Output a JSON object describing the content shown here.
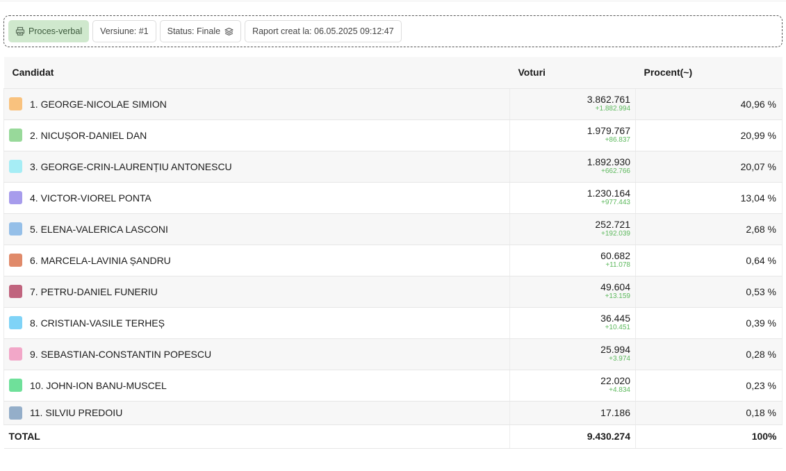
{
  "toolbar": {
    "proces_verbal": "Proces-verbal",
    "version": "Versiune: #1",
    "status": "Status: Finale",
    "report": "Raport creat la: 06.05.2025 09:12:47"
  },
  "table": {
    "headers": {
      "candidate": "Candidat",
      "votes": "Voturi",
      "percent": "Procent(~)"
    },
    "rows": [
      {
        "name": "1. GEORGE-NICOLAE SIMION",
        "votes": "3.862.761",
        "delta": "+1.882.994",
        "percent": "40,96 %",
        "color": "#f9c27e"
      },
      {
        "name": "2. NICUȘOR-DANIEL DAN",
        "votes": "1.979.767",
        "delta": "+86.837",
        "percent": "20,99 %",
        "color": "#98d99a"
      },
      {
        "name": "3. GEORGE-CRIN-LAURENȚIU ANTONESCU",
        "votes": "1.892.930",
        "delta": "+662.766",
        "percent": "20,07 %",
        "color": "#a6edf5"
      },
      {
        "name": "4. VICTOR-VIOREL PONTA",
        "votes": "1.230.164",
        "delta": "+977.443",
        "percent": "13,04 %",
        "color": "#a79cec"
      },
      {
        "name": "5. ELENA-VALERICA LASCONI",
        "votes": "252.721",
        "delta": "+192.039",
        "percent": "2,68 %",
        "color": "#95bfe8"
      },
      {
        "name": "6. MARCELA-LAVINIA ȘANDRU",
        "votes": "60.682",
        "delta": "+11.078",
        "percent": "0,64 %",
        "color": "#e08a6a"
      },
      {
        "name": "7. PETRU-DANIEL FUNERIU",
        "votes": "49.604",
        "delta": "+13.159",
        "percent": "0,53 %",
        "color": "#c0647e"
      },
      {
        "name": "8. CRISTIAN-VASILE TERHEȘ",
        "votes": "36.445",
        "delta": "+10.451",
        "percent": "0,39 %",
        "color": "#7fd3f7"
      },
      {
        "name": "9. SEBASTIAN-CONSTANTIN POPESCU",
        "votes": "25.994",
        "delta": "+3.974",
        "percent": "0,28 %",
        "color": "#f2a7c8"
      },
      {
        "name": "10. JOHN-ION BANU-MUSCEL",
        "votes": "22.020",
        "delta": "+4.834",
        "percent": "0,23 %",
        "color": "#6fe09a"
      },
      {
        "name": "11. SILVIU PREDOIU",
        "votes": "17.186",
        "percent": "0,18 %",
        "color": "#94aec9"
      }
    ],
    "total": {
      "label": "TOTAL",
      "votes": "9.430.274",
      "percent": "100%"
    }
  },
  "icons": {
    "proces_verbal": "printer-icon",
    "status": "layers-icon"
  }
}
